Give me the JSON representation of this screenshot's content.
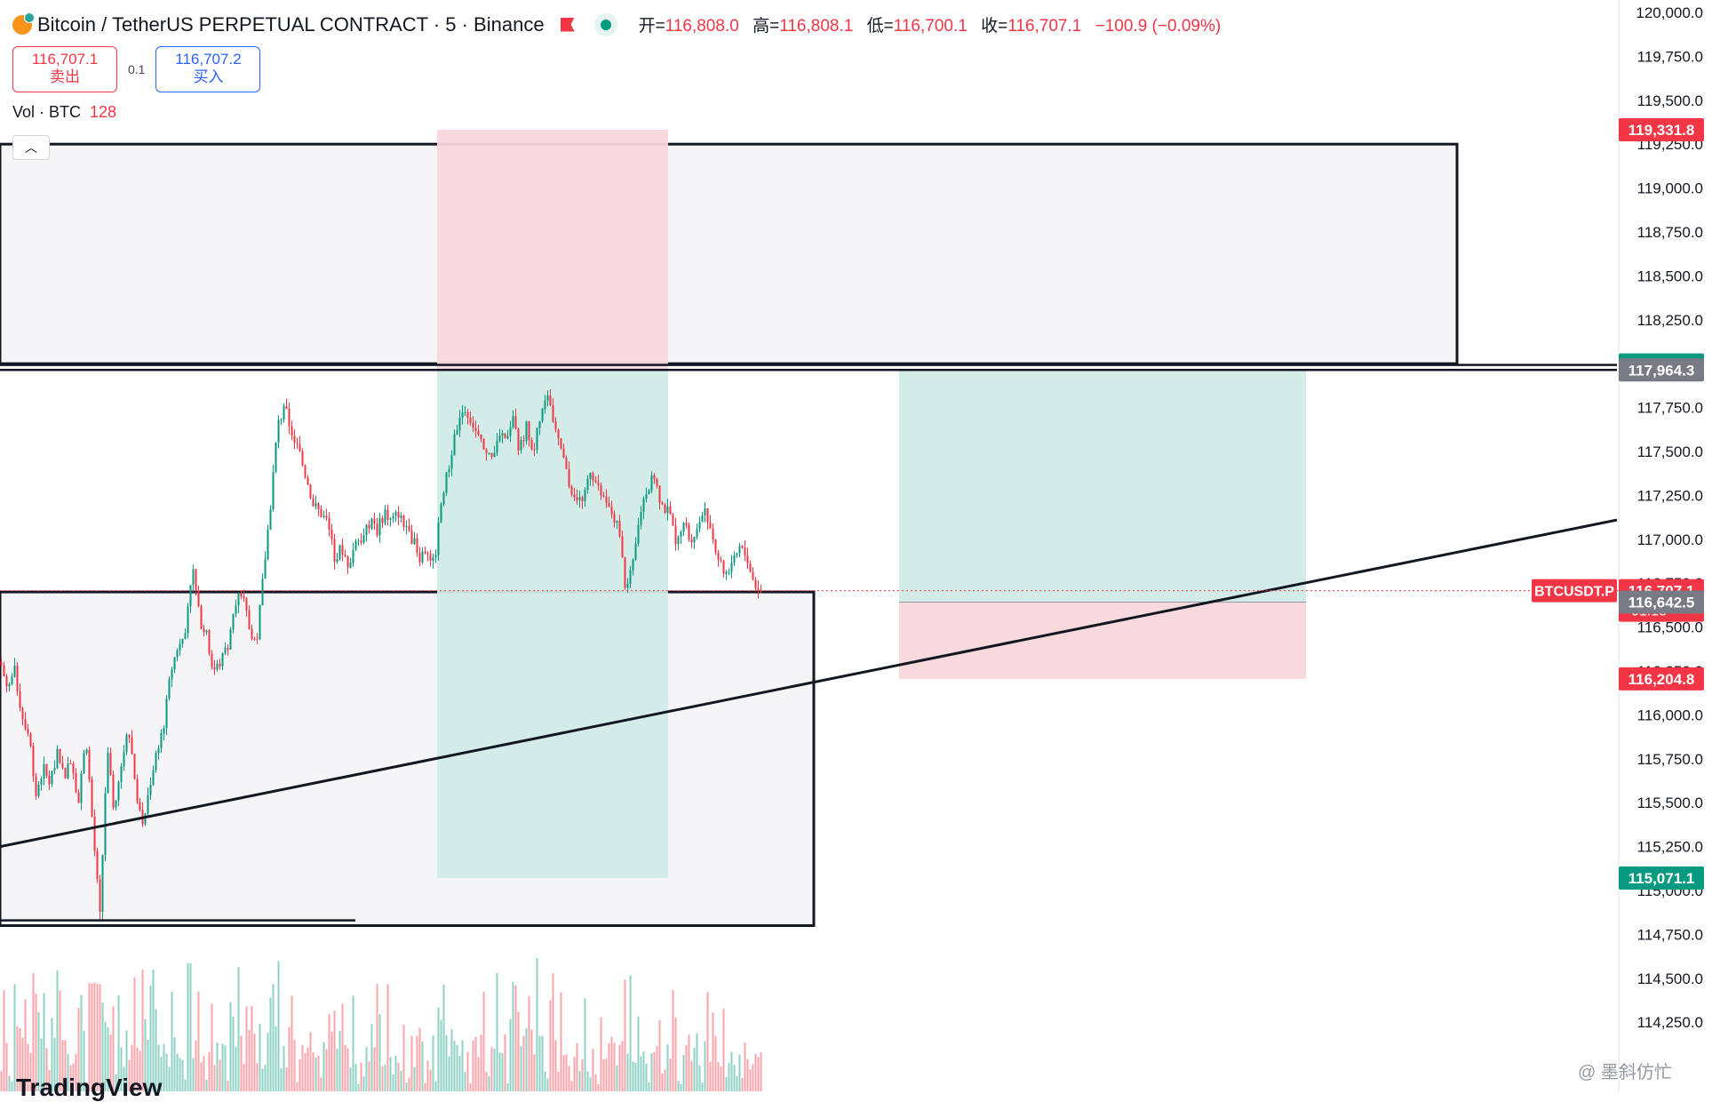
{
  "header": {
    "title": "Bitcoin / TetherUS PERPETUAL CONTRACT · 5 · Binance",
    "ohlc": [
      {
        "label": "开=",
        "value": "116,808.0"
      },
      {
        "label": "高=",
        "value": "116,808.1"
      },
      {
        "label": "低=",
        "value": "116,700.1"
      },
      {
        "label": "收=",
        "value": "116,707.1"
      },
      {
        "label": "",
        "value": "−100.9 (−0.09%)"
      }
    ]
  },
  "trade": {
    "sell_price": "116,707.1",
    "sell_label": "卖出",
    "spread": "0.1",
    "buy_price": "116,707.2",
    "buy_label": "买入"
  },
  "volume": {
    "label": "Vol · BTC",
    "value": "128"
  },
  "logo": "TradingView",
  "watermark": "@ 墨斜仿忙",
  "colors": {
    "up": "#089981",
    "down": "#f23645",
    "zone_fill": "#f5f5f8",
    "profit_fill": "#d1ebe6",
    "loss_fill": "#f8d7dc"
  },
  "chart_data": {
    "type": "candlestick",
    "symbol": "BTCUSDT.P",
    "timeframe": "5",
    "y_axis": {
      "min": 114000,
      "max": 120000,
      "ticks": [
        "120,000.0",
        "119,750.0",
        "119,500.0",
        "119,250.0",
        "119,000.0",
        "118,750.0",
        "118,500.0",
        "118,250.0",
        "118,000.0",
        "117,750.0",
        "117,500.0",
        "117,250.0",
        "117,000.0",
        "116,750.0",
        "116,500.0",
        "116,250.0",
        "116,000.0",
        "115,750.0",
        "115,500.0",
        "115,250.0",
        "115,000.0",
        "114,750.0",
        "114,500.0",
        "114,250.0"
      ],
      "tick_values": [
        120000,
        119750,
        119500,
        119250,
        119000,
        118750,
        118500,
        118250,
        118000,
        117750,
        117500,
        117250,
        117000,
        116750,
        116500,
        116250,
        116000,
        115750,
        115500,
        115250,
        115000,
        114750,
        114500,
        114250
      ]
    },
    "price_labels": [
      {
        "text": "119,331.8",
        "price": 119331.8,
        "color": "#f23645"
      },
      {
        "text": "117,992.9",
        "price": 117992.9,
        "color": "#089981"
      },
      {
        "text": "117,964.3",
        "price": 117964.3,
        "color": "#787b86"
      },
      {
        "text": "116,707.1",
        "sub": "01:18",
        "price": 116707.1,
        "color": "#f23645"
      },
      {
        "text": "116,642.5",
        "price": 116642.5,
        "color": "#787b86"
      },
      {
        "text": "116,204.8",
        "price": 116204.8,
        "color": "#f23645"
      },
      {
        "text": "115,071.1",
        "price": 115071.1,
        "color": "#089981"
      }
    ],
    "symbol_tag": {
      "text": "BTCUSDT.P",
      "price": 116707.1
    },
    "last_price": 116707.1,
    "series_path": [
      [
        0,
        116300
      ],
      [
        8,
        116150
      ],
      [
        16,
        116250
      ],
      [
        24,
        116000
      ],
      [
        32,
        115900
      ],
      [
        40,
        115550
      ],
      [
        48,
        115700
      ],
      [
        56,
        115600
      ],
      [
        64,
        115800
      ],
      [
        72,
        115650
      ],
      [
        80,
        115750
      ],
      [
        88,
        115500
      ],
      [
        96,
        115900
      ],
      [
        104,
        115350
      ],
      [
        112,
        114850
      ],
      [
        120,
        115800
      ],
      [
        128,
        115450
      ],
      [
        136,
        115700
      ],
      [
        144,
        115950
      ],
      [
        152,
        115600
      ],
      [
        160,
        115350
      ],
      [
        168,
        115600
      ],
      [
        176,
        115800
      ],
      [
        184,
        115950
      ],
      [
        192,
        116250
      ],
      [
        200,
        116400
      ],
      [
        208,
        116500
      ],
      [
        216,
        116850
      ],
      [
        224,
        116550
      ],
      [
        232,
        116450
      ],
      [
        240,
        116250
      ],
      [
        248,
        116300
      ],
      [
        256,
        116400
      ],
      [
        264,
        116650
      ],
      [
        272,
        116700
      ],
      [
        280,
        116500
      ],
      [
        288,
        116400
      ],
      [
        296,
        116800
      ],
      [
        304,
        117200
      ],
      [
        312,
        117650
      ],
      [
        320,
        117750
      ],
      [
        328,
        117600
      ],
      [
        336,
        117500
      ],
      [
        344,
        117350
      ],
      [
        352,
        117200
      ],
      [
        360,
        117150
      ],
      [
        368,
        117100
      ],
      [
        376,
        116900
      ],
      [
        384,
        116950
      ],
      [
        392,
        116850
      ],
      [
        400,
        117000
      ],
      [
        408,
        117000
      ],
      [
        416,
        117100
      ],
      [
        424,
        117050
      ],
      [
        432,
        117150
      ],
      [
        440,
        117100
      ],
      [
        448,
        117150
      ],
      [
        456,
        117050
      ],
      [
        464,
        117000
      ],
      [
        472,
        116900
      ],
      [
        480,
        116950
      ],
      [
        488,
        116850
      ],
      [
        496,
        117200
      ],
      [
        504,
        117400
      ],
      [
        512,
        117600
      ],
      [
        520,
        117750
      ],
      [
        528,
        117700
      ],
      [
        536,
        117600
      ],
      [
        544,
        117500
      ],
      [
        552,
        117450
      ],
      [
        560,
        117600
      ],
      [
        568,
        117550
      ],
      [
        576,
        117700
      ],
      [
        584,
        117500
      ],
      [
        592,
        117650
      ],
      [
        600,
        117500
      ],
      [
        608,
        117700
      ],
      [
        616,
        117800
      ],
      [
        624,
        117650
      ],
      [
        632,
        117500
      ],
      [
        640,
        117300
      ],
      [
        648,
        117250
      ],
      [
        656,
        117200
      ],
      [
        664,
        117400
      ],
      [
        672,
        117300
      ],
      [
        680,
        117200
      ],
      [
        688,
        117150
      ],
      [
        696,
        117050
      ],
      [
        704,
        116700
      ],
      [
        712,
        116850
      ],
      [
        720,
        117150
      ],
      [
        728,
        117300
      ],
      [
        736,
        117350
      ],
      [
        744,
        117200
      ],
      [
        752,
        117150
      ],
      [
        760,
        117000
      ],
      [
        768,
        117100
      ],
      [
        776,
        117000
      ],
      [
        784,
        117050
      ],
      [
        792,
        117200
      ],
      [
        800,
        117050
      ],
      [
        808,
        116900
      ],
      [
        816,
        116800
      ],
      [
        824,
        116850
      ],
      [
        832,
        116950
      ],
      [
        840,
        116900
      ],
      [
        848,
        116750
      ],
      [
        856,
        116700
      ]
    ],
    "zones": [
      {
        "type": "box",
        "x_start": 0,
        "x_end": 1640,
        "top": 119250,
        "bottom": 118000
      },
      {
        "type": "box",
        "x_start": 0,
        "x_end": 916,
        "top": 116700,
        "bottom": 114800
      },
      {
        "type": "risk_reward",
        "side": "short",
        "x_start": 492,
        "x_end": 752,
        "stop": 119331.8,
        "entry": 117964.3,
        "target": 115071.1
      },
      {
        "type": "risk_reward",
        "side": "long",
        "x_start": 1012,
        "x_end": 1470,
        "target": 117964.3,
        "entry": 116642.5,
        "stop": 116204.8
      }
    ],
    "lines": [
      {
        "name": "horizontal",
        "x_start": 0,
        "x_end": 1820,
        "price": 117992.9
      },
      {
        "name": "horizontal",
        "x_start": 0,
        "x_end": 1820,
        "price": 117964.3
      },
      {
        "name": "horizontal",
        "x_start": 0,
        "x_end": 400,
        "price": 114830
      },
      {
        "name": "trendline",
        "x_start": 0,
        "y_start": 115250,
        "x_end": 1820,
        "y_end": 117110
      }
    ]
  }
}
